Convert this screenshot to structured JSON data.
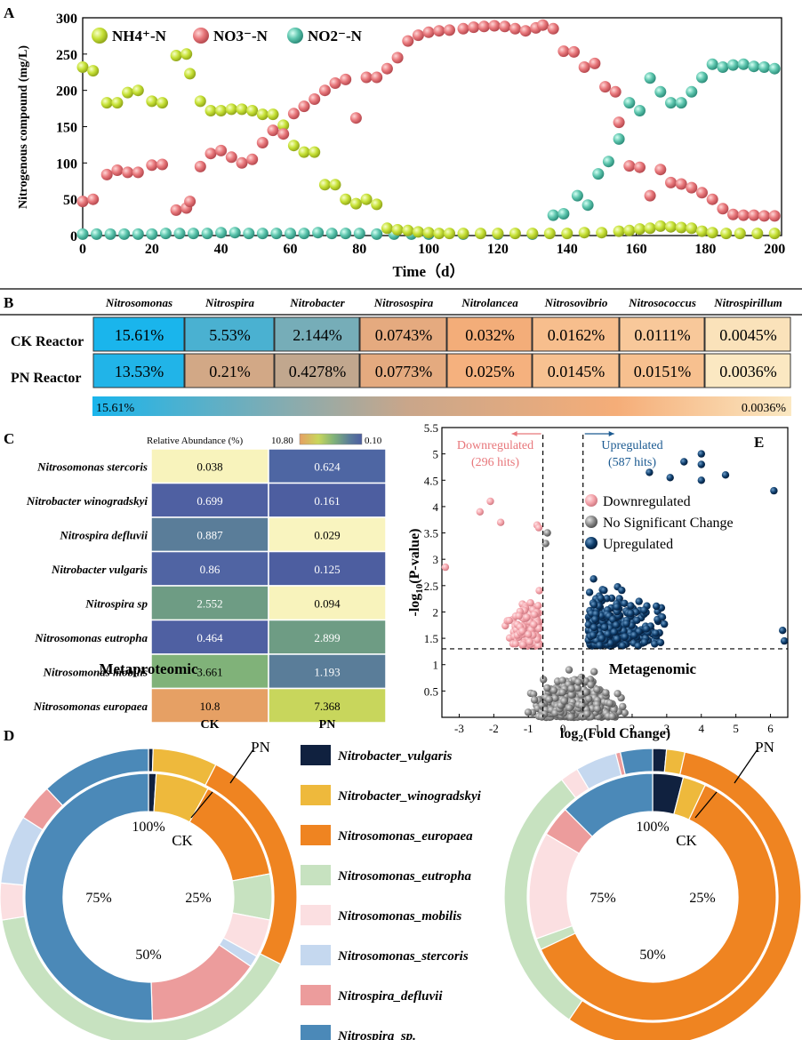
{
  "colors": {
    "nh4": "#c6e135",
    "no3": "#e8777b",
    "no2": "#5cc5ad",
    "down": "#f4a3aa",
    "nochange": "#8a8a8a",
    "up": "#0e3d6b",
    "tableHigh": "#1ab5ec",
    "tableLow": "#fbe8c2"
  },
  "panel_labels": [
    "A",
    "B",
    "C",
    "D",
    "E"
  ],
  "chart_data": [
    {
      "id": "A",
      "type": "scatter",
      "xlabel": "Time（d）",
      "ylabel": "Nitrogenous compound (mg/L)",
      "xlim": [
        0,
        202
      ],
      "ylim": [
        0,
        300
      ],
      "xticks": [
        0,
        20,
        40,
        60,
        80,
        100,
        120,
        140,
        160,
        180,
        200
      ],
      "yticks": [
        0,
        50,
        100,
        150,
        200,
        250,
        300
      ],
      "legend": [
        "NH4⁺-N",
        "NO3⁻-N",
        "NO2⁻-N"
      ],
      "series": [
        {
          "name": "NH4⁺-N",
          "points": [
            [
              0,
              232
            ],
            [
              3,
              227
            ],
            [
              7,
              183
            ],
            [
              10,
              183
            ],
            [
              13,
              197
            ],
            [
              16,
              200
            ],
            [
              20,
              185
            ],
            [
              23,
              183
            ],
            [
              27,
              248
            ],
            [
              30,
              250
            ],
            [
              31,
              223
            ],
            [
              34,
              185
            ],
            [
              37,
              172
            ],
            [
              40,
              172
            ],
            [
              43,
              174
            ],
            [
              46,
              174
            ],
            [
              49,
              172
            ],
            [
              52,
              167
            ],
            [
              55,
              167
            ],
            [
              58,
              152
            ],
            [
              61,
              124
            ],
            [
              64,
              115
            ],
            [
              67,
              115
            ],
            [
              70,
              70
            ],
            [
              73,
              70
            ],
            [
              76,
              50
            ],
            [
              79,
              44
            ],
            [
              82,
              50
            ],
            [
              85,
              43
            ],
            [
              88,
              10
            ],
            [
              91,
              8
            ],
            [
              94,
              7
            ],
            [
              97,
              5
            ],
            [
              100,
              4
            ],
            [
              103,
              3
            ],
            [
              106,
              3
            ],
            [
              110,
              3
            ],
            [
              115,
              3
            ],
            [
              120,
              3
            ],
            [
              125,
              3
            ],
            [
              130,
              3
            ],
            [
              135,
              3
            ],
            [
              140,
              3
            ],
            [
              145,
              4
            ],
            [
              150,
              4
            ],
            [
              155,
              6
            ],
            [
              158,
              7
            ],
            [
              161,
              9
            ],
            [
              164,
              10
            ],
            [
              167,
              13
            ],
            [
              170,
              12
            ],
            [
              173,
              11
            ],
            [
              176,
              10
            ],
            [
              179,
              6
            ],
            [
              182,
              4
            ],
            [
              186,
              3
            ],
            [
              190,
              3
            ],
            [
              195,
              3
            ],
            [
              200,
              3
            ]
          ]
        },
        {
          "name": "NO3⁻-N",
          "points": [
            [
              0,
              47
            ],
            [
              3,
              50
            ],
            [
              7,
              84
            ],
            [
              10,
              90
            ],
            [
              13,
              87
            ],
            [
              16,
              87
            ],
            [
              20,
              97
            ],
            [
              23,
              98
            ],
            [
              27,
              35
            ],
            [
              30,
              38
            ],
            [
              31,
              47
            ],
            [
              34,
              95
            ],
            [
              37,
              113
            ],
            [
              40,
              117
            ],
            [
              43,
              108
            ],
            [
              46,
              100
            ],
            [
              49,
              105
            ],
            [
              52,
              128
            ],
            [
              55,
              145
            ],
            [
              58,
              140
            ],
            [
              61,
              168
            ],
            [
              64,
              178
            ],
            [
              67,
              188
            ],
            [
              70,
              200
            ],
            [
              73,
              210
            ],
            [
              76,
              215
            ],
            [
              79,
              162
            ],
            [
              82,
              218
            ],
            [
              85,
              218
            ],
            [
              88,
              230
            ],
            [
              91,
              245
            ],
            [
              94,
              268
            ],
            [
              97,
              276
            ],
            [
              100,
              280
            ],
            [
              103,
              282
            ],
            [
              106,
              283
            ],
            [
              110,
              285
            ],
            [
              113,
              287
            ],
            [
              116,
              288
            ],
            [
              119,
              289
            ],
            [
              122,
              288
            ],
            [
              125,
              285
            ],
            [
              128,
              282
            ],
            [
              131,
              286
            ],
            [
              133,
              290
            ],
            [
              136,
              285
            ],
            [
              139,
              254
            ],
            [
              142,
              253
            ],
            [
              145,
              232
            ],
            [
              148,
              237
            ],
            [
              151,
              205
            ],
            [
              154,
              198
            ],
            [
              155,
              156
            ],
            [
              158,
              96
            ],
            [
              161,
              94
            ],
            [
              164,
              55
            ],
            [
              167,
              91
            ],
            [
              170,
              73
            ],
            [
              173,
              71
            ],
            [
              176,
              66
            ],
            [
              179,
              59
            ],
            [
              182,
              50
            ],
            [
              185,
              37
            ],
            [
              188,
              29
            ],
            [
              191,
              28
            ],
            [
              194,
              28
            ],
            [
              197,
              27
            ],
            [
              200,
              27
            ]
          ]
        },
        {
          "name": "NO2⁻-N",
          "points": [
            [
              0,
              2
            ],
            [
              4,
              2
            ],
            [
              8,
              2
            ],
            [
              12,
              2
            ],
            [
              16,
              2
            ],
            [
              20,
              2
            ],
            [
              24,
              3
            ],
            [
              28,
              3
            ],
            [
              32,
              3
            ],
            [
              36,
              3
            ],
            [
              40,
              4
            ],
            [
              44,
              4
            ],
            [
              48,
              3
            ],
            [
              52,
              3
            ],
            [
              56,
              3
            ],
            [
              60,
              3
            ],
            [
              64,
              3
            ],
            [
              68,
              4
            ],
            [
              72,
              3
            ],
            [
              76,
              3
            ],
            [
              80,
              3
            ],
            [
              85,
              2
            ],
            [
              90,
              2
            ],
            [
              95,
              2
            ],
            [
              100,
              2
            ],
            [
              110,
              2
            ],
            [
              120,
              2
            ],
            [
              130,
              2
            ],
            [
              136,
              28
            ],
            [
              139,
              30
            ],
            [
              143,
              55
            ],
            [
              146,
              42
            ],
            [
              149,
              85
            ],
            [
              152,
              102
            ],
            [
              155,
              133
            ],
            [
              158,
              183
            ],
            [
              161,
              172
            ],
            [
              164,
              217
            ],
            [
              167,
              198
            ],
            [
              170,
              183
            ],
            [
              173,
              183
            ],
            [
              176,
              198
            ],
            [
              179,
              218
            ],
            [
              182,
              236
            ],
            [
              185,
              232
            ],
            [
              188,
              235
            ],
            [
              191,
              236
            ],
            [
              194,
              233
            ],
            [
              197,
              232
            ],
            [
              200,
              230
            ]
          ]
        }
      ]
    },
    {
      "id": "B",
      "type": "table",
      "columns": [
        "Nitrosomonas",
        "Nitrospira",
        "Nitrobacter",
        "Nitrosospira",
        "Nitrolancea",
        "Nitrosovibrio",
        "Nitrosococcus",
        "Nitrospirillum"
      ],
      "rows": [
        {
          "label": "CK Reactor",
          "values": [
            15.61,
            5.53,
            2.144,
            0.0743,
            0.032,
            0.0162,
            0.0111,
            0.0045
          ],
          "text": [
            "15.61%",
            "5.53%",
            "2.144%",
            "0.0743%",
            "0.032%",
            "0.0162%",
            "0.0111%",
            "0.0045%"
          ]
        },
        {
          "label": "PN Reactor",
          "values": [
            13.53,
            0.21,
            0.4278,
            0.0773,
            0.025,
            0.0145,
            0.0151,
            0.0036
          ],
          "text": [
            "13.53%",
            "0.21%",
            "0.4278%",
            "0.0773%",
            "0.025%",
            "0.0145%",
            "0.0151%",
            "0.0036%"
          ]
        }
      ],
      "scale": {
        "min_label": "15.61%",
        "max_label": "0.0036%"
      }
    },
    {
      "id": "C",
      "type": "heatmap",
      "legend_title": "Relative Abundance (%)",
      "scale_labels": [
        "10.80",
        "0.10"
      ],
      "rows": [
        "Nitrosomonas stercoris",
        "Nitrobacter winogradskyi",
        "Nitrospira defluvii",
        "Nitrobacter vulgaris",
        "Nitrospira sp",
        "Nitrosomonas eutropha",
        "Nitrosomonas mobilis",
        "Nitrosomonas europaea"
      ],
      "columns": [
        "CK",
        "PN"
      ],
      "values": [
        [
          0.038,
          0.624
        ],
        [
          0.699,
          0.161
        ],
        [
          0.887,
          0.029
        ],
        [
          0.86,
          0.125
        ],
        [
          2.552,
          0.094
        ],
        [
          0.464,
          2.899
        ],
        [
          3.661,
          1.193
        ],
        [
          10.8,
          7.368
        ]
      ],
      "labels": [
        [
          "0.038",
          "0.624"
        ],
        [
          "0.699",
          "0.161"
        ],
        [
          "0.887",
          "0.029"
        ],
        [
          "0.86",
          "0.125"
        ],
        [
          "2.552",
          "0.094"
        ],
        [
          "0.464",
          "2.899"
        ],
        [
          "3.661",
          "1.193"
        ],
        [
          "10.8",
          "7.368"
        ]
      ],
      "cell_colors": [
        [
          "#f8f3bc",
          "#4e66a3"
        ],
        [
          "#4f60a2",
          "#4d5ea0"
        ],
        [
          "#5a7d99",
          "#f9f4bf"
        ],
        [
          "#5064a3",
          "#4d5ea0"
        ],
        [
          "#6e9c84",
          "#f8f3bc"
        ],
        [
          "#4f60a2",
          "#6e9c84"
        ],
        [
          "#80b279",
          "#5a7d99"
        ],
        [
          "#e6a064",
          "#c8d65c"
        ]
      ]
    },
    {
      "id": "D",
      "type": "pie",
      "legend": [
        "Nitrobacter_vulgaris",
        "Nitrobacter_winogradskyi",
        "Nitrosomonas_europaea",
        "Nitrosomonas_eutropha",
        "Nitrosomonas_mobilis",
        "Nitrosomonas_stercoris",
        "Nitrospira_defluvii",
        "Nitrospira_sp."
      ],
      "legend_colors": [
        "#10213f",
        "#eeb93c",
        "#ef8421",
        "#c7e2c0",
        "#fbdfe1",
        "#c5d8ef",
        "#ec9c9c",
        "#4b89b8"
      ],
      "pct_labels": [
        "100%",
        "25%",
        "50%",
        "75%"
      ],
      "ring_labels": {
        "inner": "CK",
        "outer": "PN"
      },
      "charts": [
        {
          "title": "Metaproteomic",
          "inner": [
            0.01,
            0.07,
            0.14,
            0.06,
            0.05,
            0.015,
            0.15,
            0.505
          ],
          "outer": [
            0.005,
            0.07,
            0.25,
            0.4,
            0.04,
            0.075,
            0.04,
            0.12
          ]
        },
        {
          "title": "Metagenomic",
          "inner": [
            0.04,
            0.03,
            0.61,
            0.015,
            0.14,
            0.0,
            0.04,
            0.125
          ],
          "outer": [
            0.015,
            0.02,
            0.56,
            0.3,
            0.02,
            0.045,
            0.005,
            0.035
          ]
        }
      ]
    },
    {
      "id": "E",
      "type": "scatter",
      "xlabel": "log2(Fold Change)",
      "ylabel": "-log10(P-value)",
      "xlim": [
        -3.5,
        6.5
      ],
      "ylim": [
        0,
        5.5
      ],
      "xticks": [
        -3,
        -2,
        -1,
        0,
        1,
        2,
        3,
        4,
        5,
        6
      ],
      "yticks": [
        0.5,
        1.0,
        1.5,
        2.0,
        2.5,
        3.0,
        3.5,
        4.0,
        4.5,
        5.0,
        5.5
      ],
      "thresholds": {
        "x": [
          -0.58,
          0.58
        ],
        "y": 1.3
      },
      "annotations": {
        "down": "Downregulated",
        "down_hits": "(296 hits)",
        "up": "Upregulated",
        "up_hits": "(587 hits)"
      },
      "legend": [
        "Downregulated",
        "No Significant Change",
        "Upregulated"
      ],
      "counts": {
        "down": 296,
        "up": 587
      },
      "highlight_points": [
        [
          4.0,
          5.0
        ],
        [
          4.0,
          4.8
        ],
        [
          3.5,
          4.85
        ],
        [
          2.5,
          4.65
        ],
        [
          3.1,
          4.55
        ],
        [
          4.0,
          4.5
        ],
        [
          4.7,
          4.6
        ],
        [
          6.1,
          4.3
        ],
        [
          6.4,
          1.45
        ],
        [
          6.35,
          1.65
        ],
        [
          -2.1,
          4.1
        ],
        [
          -2.4,
          3.9
        ],
        [
          -1.8,
          3.7
        ],
        [
          -0.75,
          3.65
        ],
        [
          -0.7,
          3.6
        ],
        [
          -3.4,
          2.85
        ],
        [
          -0.5,
          3.3
        ],
        [
          -0.45,
          3.5
        ]
      ]
    }
  ]
}
